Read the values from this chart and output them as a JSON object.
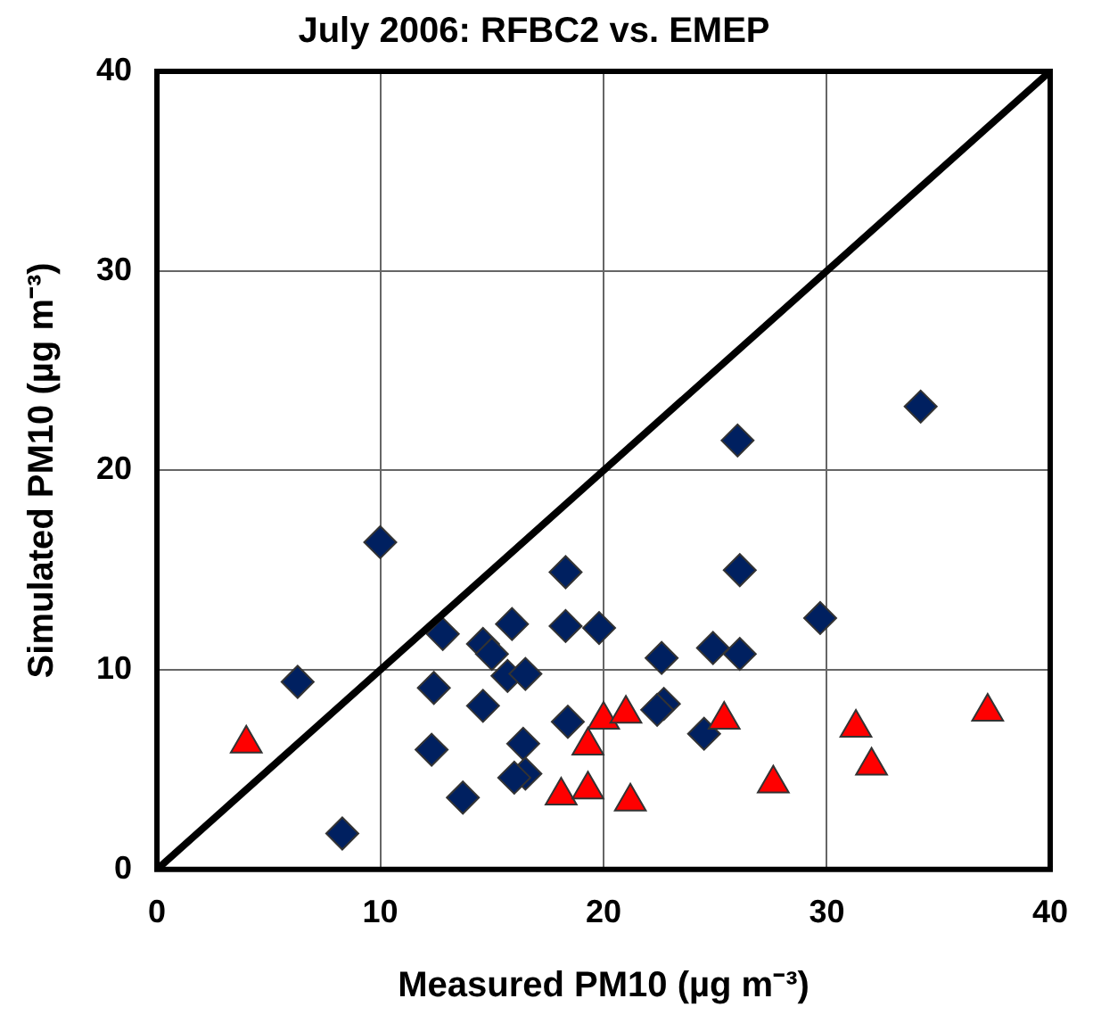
{
  "chart_data": {
    "type": "scatter",
    "title": "July 2006: RFBC2 vs. EMEP",
    "xlabel": "Measured PM10 (µg m⁻³)",
    "ylabel": "Simulated PM10 (µg m⁻³)",
    "xlim": [
      0,
      40
    ],
    "ylim": [
      0,
      40
    ],
    "xticks": [
      0,
      10,
      20,
      30,
      40
    ],
    "yticks": [
      0,
      10,
      20,
      30,
      40
    ],
    "grid": true,
    "legend": false,
    "series": [
      {
        "marker": "diamond",
        "color": "#002060",
        "x": [
          10.0,
          6.3,
          8.3,
          12.8,
          12.4,
          12.3,
          13.7,
          14.6,
          14.6,
          15.0,
          15.9,
          15.7,
          16.5,
          16.4,
          16.5,
          16.0,
          18.3,
          18.3,
          19.8,
          18.4,
          34.2,
          26.0,
          26.1,
          29.7,
          22.6,
          24.9,
          26.1,
          22.7,
          22.4,
          24.5
        ],
        "values": [
          16.4,
          9.4,
          1.8,
          11.8,
          9.1,
          6.0,
          3.6,
          8.2,
          11.3,
          10.8,
          12.3,
          9.7,
          9.8,
          6.3,
          4.8,
          4.6,
          14.9,
          12.2,
          12.1,
          7.4,
          23.2,
          21.5,
          15.0,
          12.6,
          10.6,
          11.1,
          10.8,
          8.3,
          8.0,
          6.8
        ]
      },
      {
        "marker": "triangle",
        "color": "#ff0000",
        "x": [
          4.0,
          18.1,
          19.3,
          19.3,
          20.0,
          21.0,
          21.2,
          25.4,
          27.6,
          31.3,
          32.0,
          37.2
        ],
        "values": [
          6.3,
          3.7,
          4.0,
          6.2,
          7.5,
          7.8,
          3.4,
          7.5,
          4.3,
          7.1,
          5.2,
          7.9
        ]
      },
      {
        "type": "line",
        "marker": "none",
        "color": "#000000",
        "x": [
          0,
          40
        ],
        "values": [
          0,
          40
        ]
      }
    ]
  }
}
